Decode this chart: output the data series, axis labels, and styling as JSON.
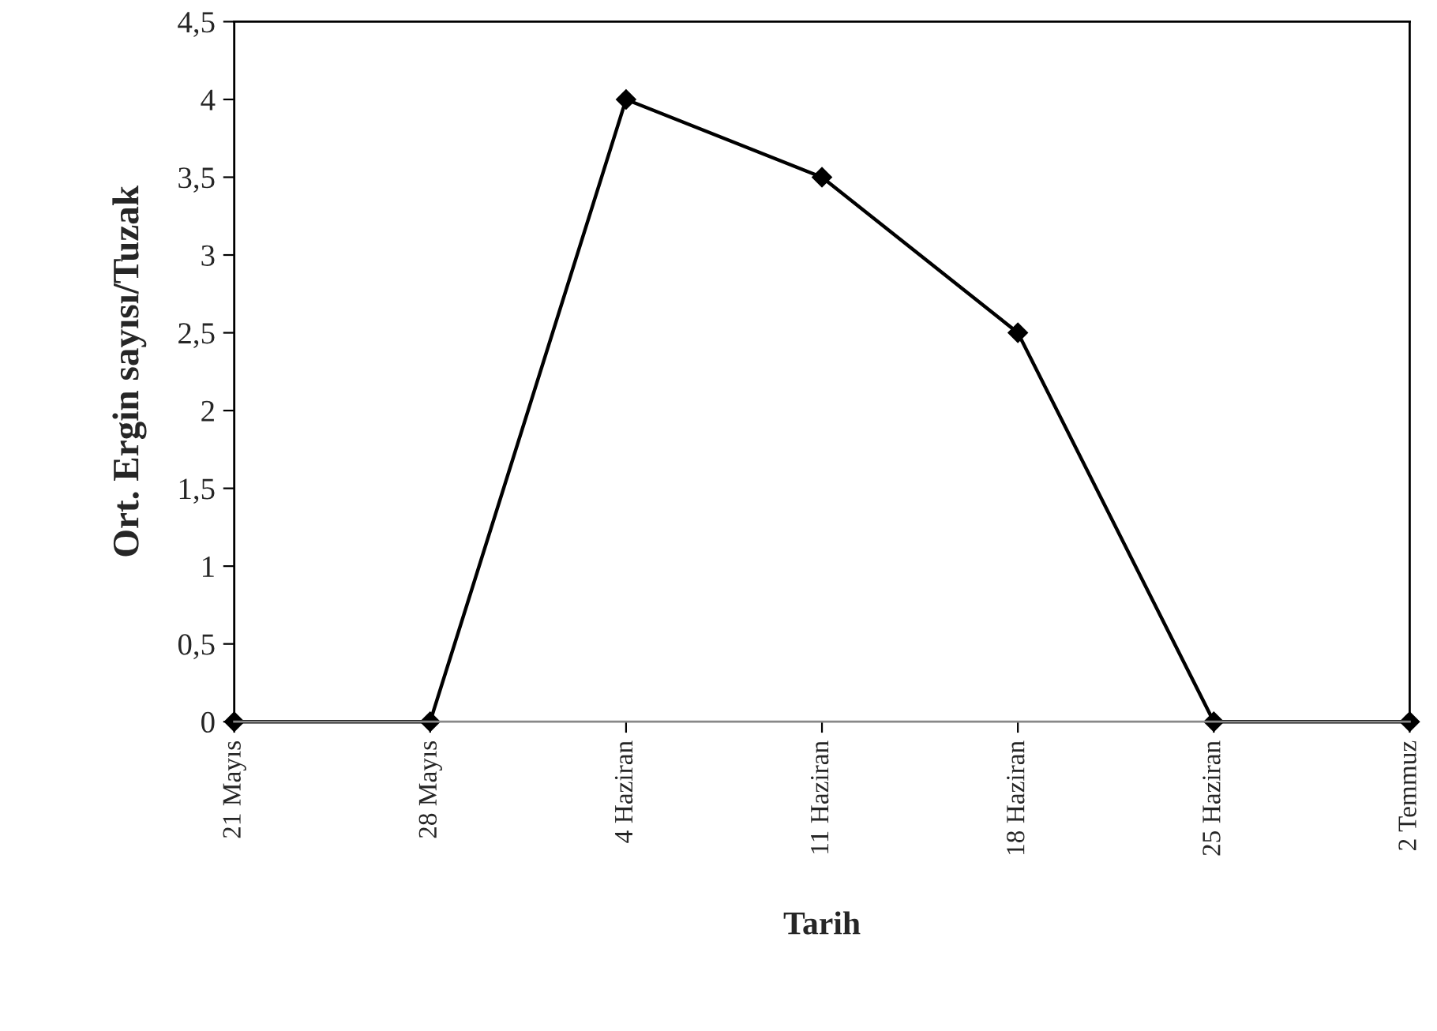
{
  "chart_data": {
    "type": "line",
    "xlabel": "Tarih",
    "ylabel": "Ort. Ergin sayısı/Tuzak",
    "categories": [
      "21 Mayıs",
      "28 Mayıs",
      "4 Haziran",
      "11 Haziran",
      "18 Haziran",
      "25 Haziran",
      "2 Temmuz"
    ],
    "series": [
      {
        "color": "#000000",
        "values": [
          0,
          0,
          4,
          3.5,
          2.5,
          0,
          0
        ]
      }
    ],
    "ylim": [
      0,
      4.5
    ],
    "yticks": [
      0,
      {
        "value": 0.5,
        "label": "0,5"
      },
      1,
      {
        "value": 1.5,
        "label": "1,5"
      },
      2,
      {
        "value": 2.5,
        "label": "2,5"
      },
      3,
      {
        "value": 3.5,
        "label": "3,5"
      },
      4,
      {
        "value": 4.5,
        "label": "4,5"
      }
    ],
    "marker": "diamond",
    "line_style": "solid"
  }
}
